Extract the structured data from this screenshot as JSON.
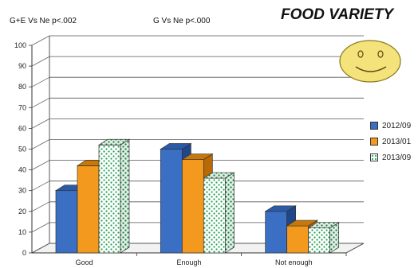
{
  "annotations": {
    "left": "G+E Vs Ne p<.002",
    "right": "G Vs Ne p<.000"
  },
  "colors": {
    "series_2012_09": "#3a6fc4",
    "series_2013_01": "#f39a1e",
    "series_2013_09": "#1fa050",
    "face": "#f4e27a"
  },
  "chart_data": {
    "type": "bar",
    "title": "FOOD VARIETY",
    "categories": [
      "Good",
      "Enough",
      "Not enough"
    ],
    "series": [
      {
        "name": "2012/09",
        "values": [
          30,
          50,
          20
        ]
      },
      {
        "name": "2013/01",
        "values": [
          42,
          45,
          13
        ]
      },
      {
        "name": "2013/09",
        "values": [
          52,
          36,
          12
        ]
      }
    ],
    "y_ticks": [
      0,
      10,
      20,
      30,
      40,
      50,
      60,
      70,
      80,
      90,
      100
    ],
    "ylim": [
      0,
      100
    ],
    "grid": true,
    "legend": "right",
    "style": "3d clustered columns"
  }
}
